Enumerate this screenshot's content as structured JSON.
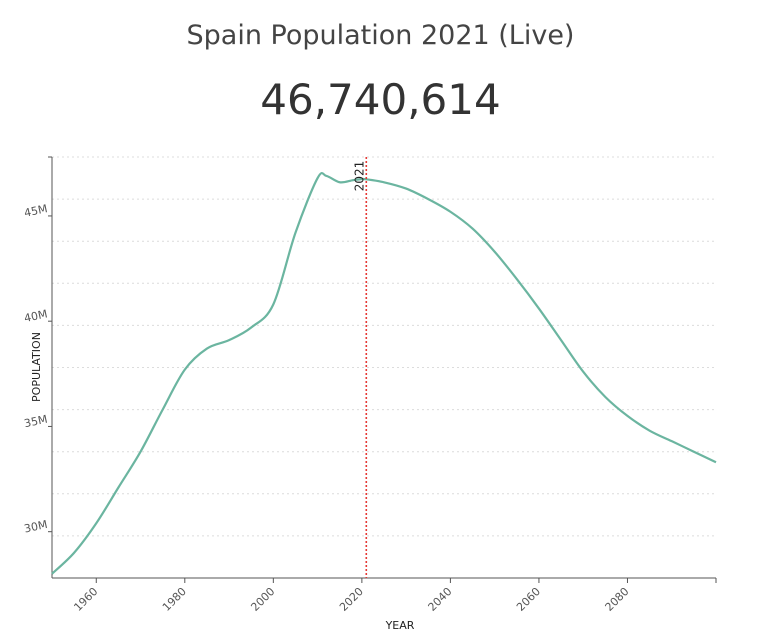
{
  "header": {
    "title": "Spain Population 2021 (Live)",
    "live_count": "46,740,614"
  },
  "chart_data": {
    "type": "line",
    "title": "Spain Population 2021 (Live)",
    "xlabel": "YEAR",
    "ylabel": "POPULATION",
    "xlim": [
      1950,
      2100
    ],
    "ylim": [
      27800000,
      47800000
    ],
    "grid": true,
    "x_ticks": [
      1960,
      1980,
      2000,
      2020,
      2040,
      2060,
      2080
    ],
    "x_tick_labels": [
      "1960",
      "1980",
      "2000",
      "2020",
      "2040",
      "2060",
      "2080"
    ],
    "y_ticks": [
      30000000,
      35000000,
      40000000,
      45000000
    ],
    "y_tick_labels": [
      "30M",
      "35M",
      "40M",
      "45M"
    ],
    "gridlines": [
      29800000,
      31800000,
      33800000,
      35800000,
      37800000,
      39800000,
      41800000,
      43800000,
      45800000,
      47800000
    ],
    "marker": {
      "year": 2021,
      "label": "2021"
    },
    "series": [
      {
        "name": "Population",
        "color": "#6bb5a0",
        "x": [
          1950,
          1955,
          1960,
          1965,
          1970,
          1975,
          1980,
          1985,
          1990,
          1995,
          2000,
          2005,
          2010,
          2012,
          2015,
          2018,
          2020,
          2021,
          2025,
          2030,
          2035,
          2040,
          2045,
          2050,
          2055,
          2060,
          2065,
          2070,
          2075,
          2080,
          2085,
          2090,
          2095,
          2100
        ],
        "values": [
          28000000,
          29000000,
          30400000,
          32100000,
          33800000,
          35800000,
          37700000,
          38700000,
          39100000,
          39700000,
          40800000,
          44200000,
          46800000,
          46900000,
          46600000,
          46700000,
          46750000,
          46740614,
          46600000,
          46300000,
          45800000,
          45200000,
          44400000,
          43300000,
          42000000,
          40600000,
          39100000,
          37600000,
          36400000,
          35500000,
          34800000,
          34300000,
          33800000,
          33300000
        ]
      }
    ],
    "marker_color": "#e53935"
  }
}
